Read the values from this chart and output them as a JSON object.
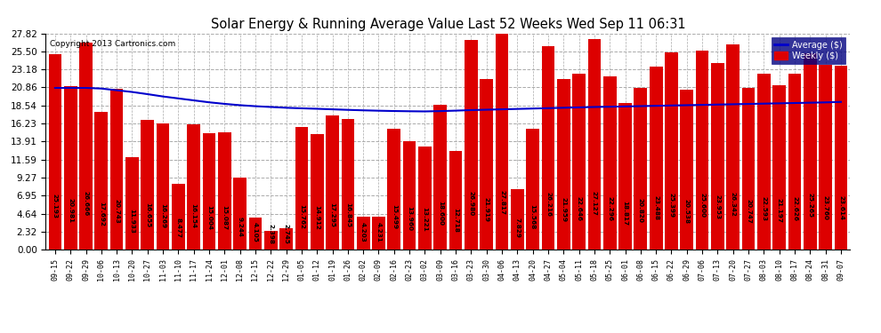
{
  "title": "Solar Energy & Running Average Value Last 52 Weeks Wed Sep 11 06:31",
  "copyright": "Copyright 2013 Cartronics.com",
  "legend_labels": [
    "Average ($)",
    "Weekly ($)"
  ],
  "background_color": "#ffffff",
  "bar_color": "#dd0000",
  "avg_line_color": "#0000cc",
  "ylim": [
    0,
    27.82
  ],
  "yticks": [
    0.0,
    2.32,
    4.64,
    6.95,
    9.27,
    11.59,
    13.91,
    16.23,
    18.54,
    20.86,
    23.18,
    25.5,
    27.82
  ],
  "categories": [
    "09-15",
    "09-22",
    "09-29",
    "10-06",
    "10-13",
    "10-20",
    "10-27",
    "11-03",
    "11-10",
    "11-17",
    "11-24",
    "12-01",
    "12-08",
    "12-15",
    "12-22",
    "12-29",
    "01-05",
    "01-12",
    "01-19",
    "01-26",
    "02-02",
    "02-09",
    "02-16",
    "02-23",
    "03-02",
    "03-09",
    "03-16",
    "03-23",
    "03-30",
    "04-06",
    "04-13",
    "04-20",
    "04-27",
    "05-04",
    "05-11",
    "05-18",
    "05-25",
    "06-01",
    "06-08",
    "06-15",
    "06-22",
    "06-29",
    "07-06",
    "07-13",
    "07-20",
    "07-27",
    "08-03",
    "08-10",
    "08-17",
    "08-24",
    "08-31",
    "09-07"
  ],
  "values": [
    25.193,
    20.981,
    26.666,
    17.692,
    20.743,
    11.933,
    16.655,
    16.269,
    8.477,
    16.154,
    15.004,
    15.087,
    9.244,
    4.105,
    2.398,
    2.745,
    15.762,
    14.912,
    17.295,
    16.845,
    4.203,
    4.231,
    15.499,
    13.96,
    13.221,
    18.6,
    12.718,
    26.98,
    21.919,
    27.817,
    7.829,
    15.568,
    26.216,
    21.959,
    22.646,
    27.127,
    22.296,
    18.817,
    20.82,
    23.488,
    25.399,
    20.538,
    25.6,
    23.953,
    26.342,
    20.747,
    22.593,
    21.197,
    22.626,
    25.265,
    23.76,
    23.614
  ],
  "avg_values": [
    20.8,
    20.8,
    20.8,
    20.72,
    20.5,
    20.28,
    20.0,
    19.7,
    19.45,
    19.2,
    18.95,
    18.75,
    18.58,
    18.45,
    18.35,
    18.25,
    18.18,
    18.12,
    18.05,
    17.98,
    17.92,
    17.87,
    17.83,
    17.8,
    17.78,
    17.82,
    17.88,
    17.95,
    18.0,
    18.05,
    18.1,
    18.15,
    18.2,
    18.25,
    18.3,
    18.35,
    18.38,
    18.42,
    18.46,
    18.5,
    18.54,
    18.58,
    18.62,
    18.66,
    18.7,
    18.74,
    18.78,
    18.82,
    18.86,
    18.9,
    18.94,
    19.0
  ]
}
